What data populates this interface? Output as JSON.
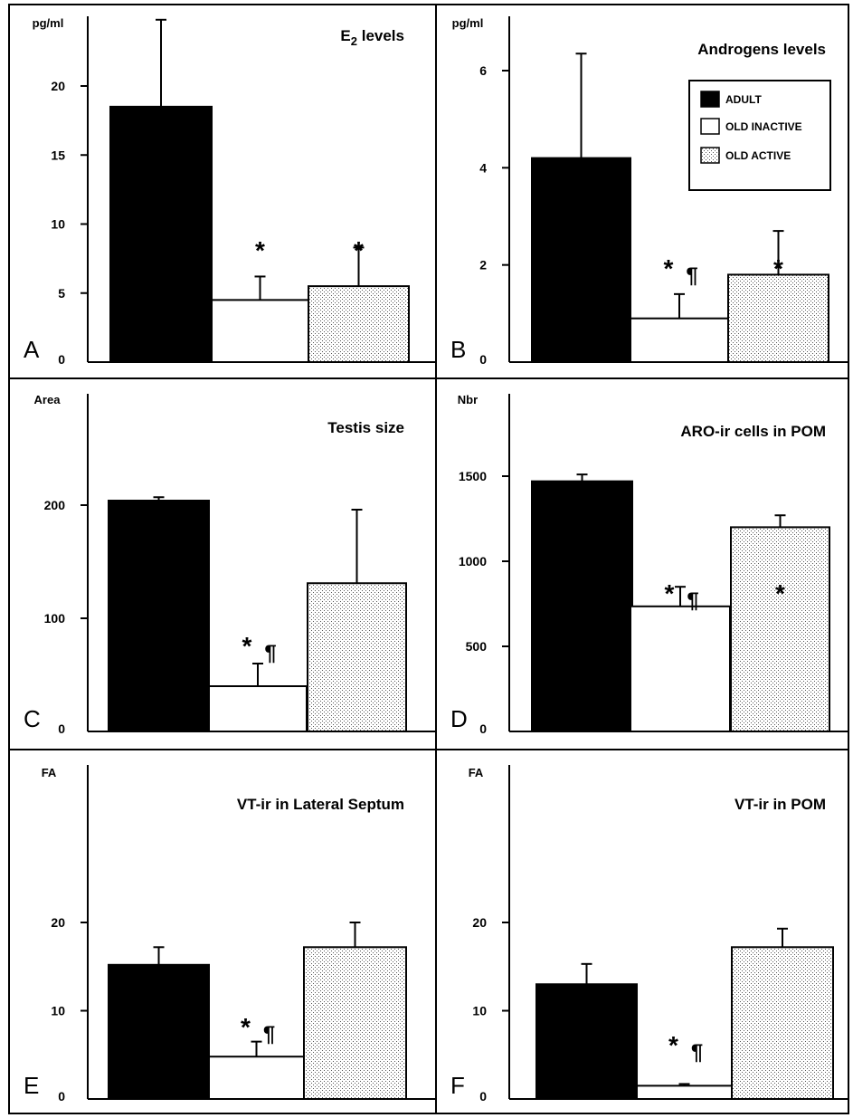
{
  "figure": {
    "legend": [
      {
        "label": "ADULT",
        "fill": "black"
      },
      {
        "label": "OLD INACTIVE",
        "fill": "white"
      },
      {
        "label": "OLD ACTIVE",
        "fill": "dots"
      }
    ]
  },
  "chart_data": [
    {
      "panel": "A",
      "type": "bar",
      "title": "E2 levels",
      "title_main": "E",
      "title_sub": "2",
      "title_rest": " levels",
      "ylabel": "pg/ml",
      "ylim": [
        0,
        25
      ],
      "yticks": [
        0,
        5,
        10,
        15,
        20
      ],
      "categories": [
        "ADULT",
        "OLD INACTIVE",
        "OLD ACTIVE"
      ],
      "values": [
        18.5,
        4.5,
        5.5
      ],
      "errors": [
        6.3,
        1.7,
        2.8
      ],
      "annotations": [
        "",
        "*",
        "*"
      ]
    },
    {
      "panel": "B",
      "type": "bar",
      "title": "Androgens levels",
      "ylabel": "pg/ml",
      "ylim": [
        0,
        7.4
      ],
      "yticks": [
        0,
        2,
        4,
        6
      ],
      "categories": [
        "ADULT",
        "OLD INACTIVE",
        "OLD ACTIVE"
      ],
      "values": [
        4.2,
        0.9,
        1.8
      ],
      "errors": [
        2.15,
        0.5,
        0.9
      ],
      "annotations": [
        "",
        "* ¶",
        "*"
      ]
    },
    {
      "panel": "C",
      "type": "bar",
      "title": "Testis size",
      "ylabel": "Area",
      "ylim": [
        0,
        300
      ],
      "yticks": [
        0,
        100,
        200
      ],
      "categories": [
        "ADULT",
        "OLD INACTIVE",
        "OLD ACTIVE"
      ],
      "values": [
        204,
        40,
        131
      ],
      "errors": [
        3,
        20,
        65
      ],
      "annotations": [
        "",
        "* ¶",
        ""
      ]
    },
    {
      "panel": "D",
      "type": "bar",
      "title": "ARO-ir cells in POM",
      "ylabel": "Nbr",
      "ylim": [
        0,
        1800
      ],
      "yticks": [
        0,
        500,
        1000,
        1500
      ],
      "categories": [
        "ADULT",
        "OLD INACTIVE",
        "OLD ACTIVE"
      ],
      "values": [
        1470,
        735,
        1200
      ],
      "errors": [
        40,
        115,
        70
      ],
      "annotations": [
        "",
        "* ¶",
        "*"
      ]
    },
    {
      "panel": "E",
      "type": "bar",
      "title": "VT-ir in Lateral Septum",
      "ylabel": "FA",
      "ylim": [
        0,
        30
      ],
      "yticks": [
        0,
        10,
        20
      ],
      "categories": [
        "ADULT",
        "OLD INACTIVE",
        "OLD ACTIVE"
      ],
      "values": [
        15.2,
        4.8,
        17.2
      ],
      "errors": [
        2,
        1.7,
        2.8
      ],
      "annotations": [
        "",
        "* ¶",
        ""
      ]
    },
    {
      "panel": "F",
      "type": "bar",
      "title": "VT-ir in POM",
      "ylabel": "FA",
      "ylim": [
        0,
        30
      ],
      "yticks": [
        0,
        10,
        20
      ],
      "categories": [
        "ADULT",
        "OLD INACTIVE",
        "OLD ACTIVE"
      ],
      "values": [
        13,
        1.5,
        17.2
      ],
      "errors": [
        2.3,
        0.2,
        2.1
      ],
      "annotations": [
        "",
        "* ¶",
        ""
      ]
    }
  ]
}
